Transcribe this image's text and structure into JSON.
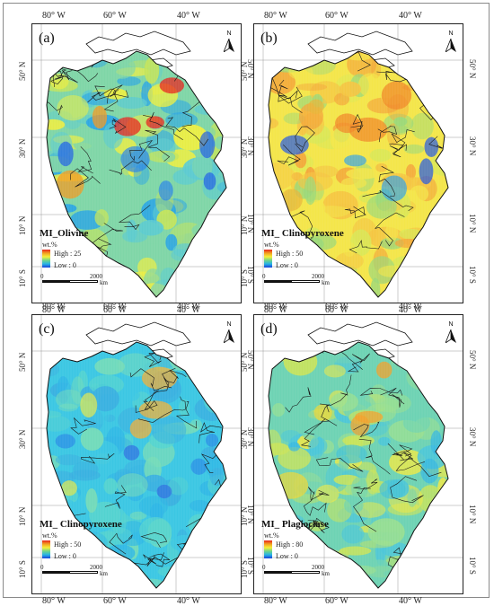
{
  "panels": [
    {
      "label": "(a)",
      "title": "MI_Olivine",
      "unit": "wt.%",
      "high": "High : 25",
      "low": "Low : 0",
      "scale_zero": "0",
      "scale_max": "2000",
      "scale_unit": "km",
      "north": "N",
      "lon_ticks": [
        "80° W",
        "60° W",
        "40° W"
      ],
      "lat_ticks": [
        "50° N",
        "30° N",
        "10° N",
        "10° S"
      ],
      "palette": [
        "#7fd6a7",
        "#c4e45b",
        "#f2ef3e",
        "#5ccbd0",
        "#2da6e3"
      ],
      "hot": [
        "#e8231e",
        "#f19a22"
      ],
      "cold": [
        "#1f5ee6",
        "#2a84e8"
      ]
    },
    {
      "label": "(b)",
      "title": "MI_ Clinopyroxene",
      "unit": "wt.%",
      "high": "High : 50",
      "low": "Low : 0",
      "scale_zero": "0",
      "scale_max": "2000",
      "scale_unit": "km",
      "north": "N",
      "lon_ticks": [
        "80° W",
        "60° W",
        "40° W"
      ],
      "lat_ticks": [
        "50° N",
        "30° N",
        "10° N",
        "10° S"
      ],
      "palette": [
        "#f4e64a",
        "#d8e857",
        "#f5c542",
        "#9ad87a",
        "#f3a63a"
      ],
      "hot": [
        "#f08a2a",
        "#e8b53a"
      ],
      "cold": [
        "#1f56e6",
        "#35a2e6"
      ]
    },
    {
      "label": "(c)",
      "title": "MI_ Clinopyroxene",
      "unit": "wt.%",
      "high": "High : 50",
      "low": "Low : 0",
      "scale_zero": "0",
      "scale_max": "2000",
      "scale_unit": "km",
      "north": "N",
      "lon_ticks": [
        "80° W",
        "60° W",
        "40° W"
      ],
      "lat_ticks": [
        "50° N",
        "30° N",
        "10° N",
        "10° S"
      ],
      "palette": [
        "#3cc7e3",
        "#55d4cf",
        "#2fb6e6",
        "#76dcb8",
        "#3ab0e0"
      ],
      "hot": [
        "#f0b03a",
        "#d9e556"
      ],
      "cold": [
        "#2a8be6",
        "#2f6ee0"
      ]
    },
    {
      "label": "(d)",
      "title": "MI_ Plagioclase",
      "unit": "wt.%",
      "high": "High : 80",
      "low": "Low : 0",
      "scale_zero": "0",
      "scale_max": "2000",
      "scale_unit": "km",
      "north": "N",
      "lon_ticks": [
        "80° W",
        "60° W",
        "40° W"
      ],
      "lat_ticks": [
        "50° N",
        "30° N",
        "10° N",
        "10° S"
      ],
      "palette": [
        "#6ed3b4",
        "#9adf90",
        "#e9e84a",
        "#4cc6d9",
        "#c8e35c"
      ],
      "hot": [
        "#f3a12c",
        "#e8d73c"
      ],
      "cold": [
        "#34b7e3",
        "#45c2d6"
      ]
    }
  ]
}
